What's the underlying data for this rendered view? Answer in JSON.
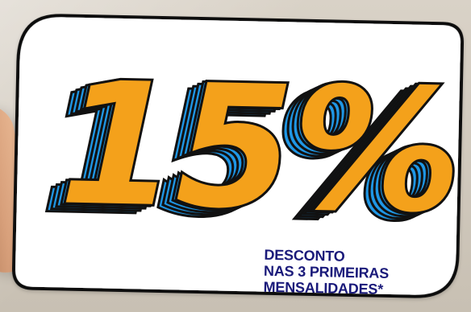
{
  "headline": {
    "value": "15%"
  },
  "caption": {
    "line1": "DESCONTO",
    "line2": "NAS 3 PRIMEIRAS",
    "line3": "MENSALIDADES*"
  },
  "colors": {
    "background": "#cfc7bb",
    "card": "#ffffff",
    "outline": "#111111",
    "orange": "#f4a11b",
    "blue": "#1f97e6",
    "caption": "#1a1a7a"
  }
}
